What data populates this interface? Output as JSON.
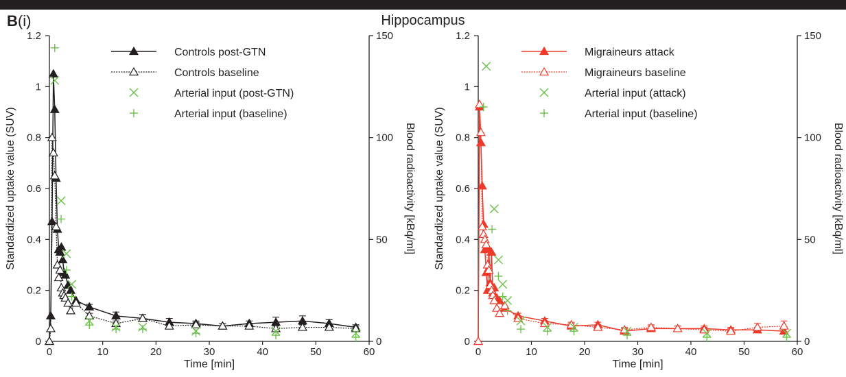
{
  "figure": {
    "panel_label_bold": "B",
    "panel_label_suffix": "(i)",
    "title": "Hippocampus"
  },
  "chart_data": [
    {
      "type": "line",
      "panel": "left",
      "xlabel": "Time [min]",
      "ylabel": "Standardized uptake value (SUV)",
      "y2label": "Blood radioactivity [kBq/ml]",
      "xlim": [
        0,
        60
      ],
      "ylim": [
        0,
        1.2
      ],
      "y2lim": [
        0,
        150
      ],
      "xticks": [
        0,
        10,
        20,
        30,
        40,
        50,
        60
      ],
      "yticks": [
        0,
        0.2,
        0.4,
        0.6,
        0.8,
        1,
        1.2
      ],
      "yticklabels": [
        "0",
        "0.2",
        "0.4",
        "0.6",
        "0.8",
        "1",
        "1.2"
      ],
      "y2ticks": [
        0,
        50,
        100,
        150
      ],
      "grid": false,
      "legend_position": "top-center",
      "color": "#231f20",
      "arterial_color": "#6cc24a",
      "series": [
        {
          "name": "Controls post-GTN",
          "style": "solid",
          "marker": "filled-triangle",
          "x": [
            0,
            0.25,
            0.5,
            0.75,
            1,
            1.25,
            1.5,
            1.75,
            2,
            2.25,
            2.5,
            2.75,
            3,
            3.5,
            4,
            5,
            7.5,
            12.5,
            17.5,
            22.5,
            27.5,
            32.5,
            37.5,
            42.5,
            47.5,
            52.5,
            57.5
          ],
          "y": [
            0,
            0.1,
            0.47,
            1.05,
            0.91,
            0.64,
            0.44,
            0.36,
            0.35,
            0.37,
            0.32,
            0.27,
            0.26,
            0.22,
            0.2,
            0.16,
            0.135,
            0.1,
            0.09,
            0.075,
            0.07,
            0.06,
            0.07,
            0.075,
            0.08,
            0.07,
            0.055
          ],
          "err": [
            0,
            0,
            0,
            0,
            0,
            0,
            0,
            0,
            0,
            0,
            0,
            0,
            0,
            0,
            0,
            0,
            0.01,
            0.015,
            0.015,
            0.015,
            0.01,
            0.01,
            0.01,
            0.02,
            0.02,
            0.015,
            0.01
          ]
        },
        {
          "name": "Controls baseline",
          "style": "dotted",
          "marker": "open-triangle",
          "x": [
            0,
            0.25,
            0.5,
            0.75,
            1,
            1.25,
            1.5,
            1.75,
            2,
            2.25,
            2.5,
            2.75,
            3,
            3.5,
            4,
            5,
            7.5,
            12.5,
            17.5,
            22.5,
            27.5,
            32.5,
            37.5,
            42.5,
            47.5,
            52.5,
            57.5
          ],
          "y": [
            0,
            0.05,
            0.8,
            0.74,
            0.65,
            0.45,
            0.3,
            0.25,
            0.28,
            0.21,
            0.19,
            0.18,
            0.17,
            0.15,
            0.12,
            0.15,
            0.1,
            0.07,
            0.09,
            0.06,
            0.065,
            0.06,
            0.06,
            0.05,
            0.055,
            0.055,
            0.05
          ],
          "err": [
            0,
            0,
            0,
            0,
            0,
            0,
            0,
            0,
            0,
            0,
            0,
            0,
            0,
            0,
            0,
            0,
            0.01,
            0.01,
            0.015,
            0.01,
            0.01,
            0.01,
            0.01,
            0.01,
            0.01,
            0.01,
            0.01
          ]
        },
        {
          "name": "Arterial input (post-GTN)",
          "style": "none",
          "marker": "x",
          "axis": "right",
          "x": [
            1,
            2.2,
            3.2,
            4.2,
            7.5,
            12.5,
            17.5,
            27.5,
            42.5,
            57.5
          ],
          "y": [
            128,
            69,
            43,
            28,
            10,
            7,
            7,
            5,
            5,
            4
          ]
        },
        {
          "name": "Arterial input (baseline)",
          "style": "none",
          "marker": "plus",
          "axis": "right",
          "x": [
            1,
            2.2,
            3.2,
            4.2,
            7.5,
            12.5,
            17.5,
            27.5,
            42.5,
            57.5
          ],
          "y": [
            144,
            60,
            35,
            22,
            8,
            6,
            6,
            4,
            3,
            2
          ]
        }
      ]
    },
    {
      "type": "line",
      "panel": "right",
      "xlabel": "Time [min]",
      "ylabel": "Standardized uptake value (SUV)",
      "y2label": "Blood radioactivity [kBq/ml]",
      "xlim": [
        0,
        60
      ],
      "ylim": [
        0,
        1.2
      ],
      "y2lim": [
        0,
        150
      ],
      "xticks": [
        0,
        10,
        20,
        30,
        40,
        50,
        60
      ],
      "yticks": [
        0,
        0.2,
        0.4,
        0.6,
        0.8,
        1,
        1.2
      ],
      "yticklabels": [
        "0",
        "0.2",
        "0.4",
        "0.6",
        "0.8",
        "1",
        "1.2"
      ],
      "y2ticks": [
        0,
        50,
        100,
        150
      ],
      "grid": false,
      "legend_position": "top-center",
      "color": "#ed3a2a",
      "arterial_color": "#6cc24a",
      "series": [
        {
          "name": "Migraineurs attack",
          "style": "solid",
          "marker": "filled-triangle",
          "x": [
            0,
            0.25,
            0.5,
            0.75,
            1,
            1.25,
            1.5,
            1.75,
            2,
            2.25,
            2.5,
            2.75,
            3,
            3.5,
            4,
            5,
            7.5,
            12.5,
            17.5,
            22.5,
            27.5,
            32.5,
            37.5,
            42.5,
            47.5,
            52.5,
            57.5
          ],
          "y": [
            0,
            0.92,
            0.78,
            0.61,
            0.46,
            0.36,
            0.27,
            0.2,
            0.36,
            0.23,
            0.35,
            0.19,
            0.21,
            0.17,
            0.16,
            0.13,
            0.1,
            0.08,
            0.06,
            0.065,
            0.04,
            0.05,
            0.05,
            0.05,
            0.045,
            0.045,
            0.04
          ],
          "err": [
            0,
            0,
            0,
            0,
            0,
            0,
            0,
            0,
            0,
            0,
            0,
            0,
            0,
            0,
            0,
            0,
            0.01,
            0.01,
            0.01,
            0.01,
            0.01,
            0.01,
            0.01,
            0.01,
            0.01,
            0.01,
            0.01
          ]
        },
        {
          "name": "Migraineurs baseline",
          "style": "dotted",
          "marker": "open-triangle",
          "x": [
            0,
            0.25,
            0.5,
            0.75,
            1,
            1.25,
            1.5,
            1.75,
            2,
            2.25,
            2.5,
            2.75,
            3,
            3.5,
            4,
            5,
            7.5,
            12.5,
            17.5,
            22.5,
            27.5,
            32.5,
            37.5,
            42.5,
            47.5,
            52.5,
            57.5
          ],
          "y": [
            0,
            0.93,
            0.82,
            0.45,
            0.42,
            0.4,
            0.38,
            0.3,
            0.28,
            0.22,
            0.2,
            0.18,
            0.16,
            0.13,
            0.11,
            0.14,
            0.09,
            0.07,
            0.065,
            0.055,
            0.045,
            0.055,
            0.05,
            0.045,
            0.04,
            0.055,
            0.06
          ],
          "err": [
            0,
            0,
            0,
            0,
            0,
            0,
            0,
            0,
            0,
            0,
            0,
            0,
            0,
            0,
            0,
            0,
            0.01,
            0.01,
            0.01,
            0.01,
            0.01,
            0.01,
            0.01,
            0.01,
            0.01,
            0.015,
            0.02
          ]
        },
        {
          "name": "Arterial input (attack)",
          "style": "none",
          "marker": "x",
          "axis": "right",
          "x": [
            1.5,
            3,
            3.8,
            4.6,
            5.5,
            8,
            13,
            18,
            28,
            43,
            58
          ],
          "y": [
            135,
            65,
            40,
            28,
            20,
            10,
            7,
            7,
            5,
            4,
            4
          ]
        },
        {
          "name": "Arterial input (baseline)",
          "style": "none",
          "marker": "plus",
          "axis": "right",
          "x": [
            1,
            2.6,
            3.8,
            4.6,
            5.5,
            8,
            13,
            18,
            28,
            43,
            58
          ],
          "y": [
            115,
            55,
            32,
            22,
            15,
            6,
            5,
            5,
            3,
            2,
            2
          ]
        }
      ]
    }
  ]
}
